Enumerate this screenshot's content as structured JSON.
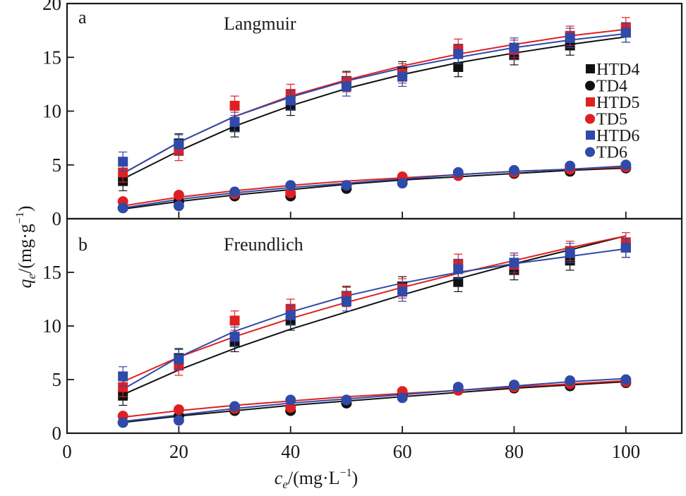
{
  "chart_data": [
    {
      "type": "scatter",
      "panel": "a",
      "panel_label": "a",
      "title": "Langmuir",
      "xlabel": "c_e/(mg·L⁻¹)",
      "ylabel": "q_e/(mg·g⁻¹)",
      "xlim": [
        0,
        110
      ],
      "ylim": [
        0,
        20
      ],
      "yticks": [
        "0",
        "5",
        "10",
        "15",
        "20"
      ],
      "ytick_values": [
        0,
        5,
        10,
        15,
        20
      ],
      "grid": false,
      "legend_position": "right",
      "x": [
        10,
        20,
        30,
        40,
        50,
        60,
        70,
        80,
        90,
        100
      ],
      "series": [
        {
          "name": "HTD4",
          "marker": "square",
          "color": "#111111",
          "values": [
            3.5,
            7.0,
            8.5,
            10.5,
            12.8,
            13.7,
            14.1,
            15.2,
            16.1,
            17.3
          ],
          "fit": [
            3.7,
            6.3,
            8.6,
            10.5,
            12.1,
            13.4,
            14.5,
            15.4,
            16.2,
            16.9
          ]
        },
        {
          "name": "TD4",
          "marker": "circle",
          "color": "#111111",
          "values": [
            1.0,
            1.6,
            2.1,
            2.1,
            2.8,
            3.6,
            4.0,
            4.2,
            4.4,
            4.7
          ],
          "fit": [
            0.9,
            1.6,
            2.2,
            2.7,
            3.2,
            3.6,
            3.9,
            4.2,
            4.5,
            4.7
          ]
        },
        {
          "name": "HTD5",
          "marker": "square",
          "color": "#e02020",
          "values": [
            4.3,
            6.3,
            10.5,
            11.6,
            12.7,
            13.5,
            15.8,
            15.7,
            17.0,
            17.8
          ],
          "fit": [
            4.2,
            7.1,
            9.5,
            11.4,
            12.9,
            14.2,
            15.3,
            16.2,
            17.0,
            17.6
          ]
        },
        {
          "name": "TD5",
          "marker": "circle",
          "color": "#e02020",
          "values": [
            1.6,
            2.2,
            2.3,
            2.4,
            3.1,
            3.9,
            4.0,
            4.3,
            4.6,
            4.8
          ],
          "fit": [
            1.2,
            2.0,
            2.6,
            3.1,
            3.5,
            3.8,
            4.1,
            4.4,
            4.6,
            4.8
          ]
        },
        {
          "name": "HTD6",
          "marker": "square",
          "color": "#2f4aa8",
          "values": [
            5.3,
            6.9,
            9.0,
            11.0,
            12.3,
            13.2,
            15.3,
            15.9,
            16.8,
            17.3
          ],
          "fit": [
            4.2,
            7.1,
            9.5,
            11.3,
            12.8,
            14.0,
            15.0,
            15.9,
            16.6,
            17.2
          ]
        },
        {
          "name": "TD6",
          "marker": "circle",
          "color": "#2f4aa8",
          "values": [
            1.0,
            1.2,
            2.5,
            3.1,
            3.1,
            3.3,
            4.3,
            4.5,
            4.9,
            5.0
          ],
          "fit": [
            1.0,
            1.8,
            2.4,
            2.9,
            3.3,
            3.7,
            4.1,
            4.4,
            4.6,
            4.9
          ]
        }
      ]
    },
    {
      "type": "scatter",
      "panel": "b",
      "panel_label": "b",
      "title": "Freundlich",
      "xlabel": "c_e/(mg·L⁻¹)",
      "ylabel": "q_e/(mg·g⁻¹)",
      "xlim": [
        0,
        110
      ],
      "ylim": [
        0,
        20
      ],
      "xticks": [
        "0",
        "20",
        "40",
        "60",
        "80",
        "100"
      ],
      "xtick_values": [
        0,
        20,
        40,
        60,
        80,
        100
      ],
      "yticks": [
        "0",
        "5",
        "10",
        "15"
      ],
      "ytick_values": [
        0,
        5,
        10,
        15
      ],
      "grid": false,
      "x": [
        10,
        20,
        30,
        40,
        50,
        60,
        70,
        80,
        90,
        100
      ],
      "series": [
        {
          "name": "HTD4",
          "marker": "square",
          "color": "#111111",
          "values": [
            3.5,
            7.0,
            8.5,
            10.5,
            12.8,
            13.7,
            14.1,
            15.2,
            16.1,
            17.3
          ],
          "fit": [
            3.6,
            5.9,
            7.9,
            9.7,
            11.3,
            12.9,
            14.4,
            15.8,
            17.1,
            18.4
          ]
        },
        {
          "name": "TD4",
          "marker": "circle",
          "color": "#111111",
          "values": [
            1.0,
            1.6,
            2.1,
            2.1,
            2.8,
            3.6,
            4.0,
            4.2,
            4.4,
            4.7
          ],
          "fit": [
            1.0,
            1.6,
            2.1,
            2.6,
            3.0,
            3.4,
            3.8,
            4.2,
            4.5,
            4.8
          ]
        },
        {
          "name": "HTD5",
          "marker": "square",
          "color": "#e02020",
          "values": [
            4.3,
            6.3,
            10.5,
            11.6,
            12.7,
            13.5,
            15.8,
            15.7,
            17.0,
            17.8
          ],
          "fit": [
            4.8,
            7.1,
            9.0,
            10.7,
            12.2,
            13.6,
            14.9,
            16.1,
            17.3,
            18.4
          ]
        },
        {
          "name": "TD5",
          "marker": "circle",
          "color": "#e02020",
          "values": [
            1.6,
            2.2,
            2.3,
            2.4,
            3.1,
            3.9,
            4.0,
            4.3,
            4.6,
            4.8
          ],
          "fit": [
            1.5,
            2.1,
            2.6,
            3.0,
            3.4,
            3.7,
            4.0,
            4.3,
            4.6,
            4.9
          ]
        },
        {
          "name": "HTD6",
          "marker": "square",
          "color": "#2f4aa8",
          "values": [
            5.3,
            6.9,
            9.0,
            11.0,
            12.3,
            13.2,
            15.3,
            15.9,
            16.8,
            17.3
          ],
          "fit": [
            4.1,
            7.1,
            9.5,
            11.3,
            12.8,
            14.0,
            15.0,
            15.8,
            16.5,
            17.2
          ]
        },
        {
          "name": "TD6",
          "marker": "circle",
          "color": "#2f4aa8",
          "values": [
            1.0,
            1.2,
            2.5,
            3.1,
            3.1,
            3.3,
            4.3,
            4.5,
            4.9,
            5.0
          ],
          "fit": [
            1.1,
            1.7,
            2.3,
            2.8,
            3.2,
            3.6,
            4.0,
            4.4,
            4.8,
            5.1
          ]
        }
      ]
    }
  ],
  "axis_titles": {
    "y_var": "q",
    "y_sub": "e",
    "y_unit": "/(mg·g",
    "y_sup": "−1",
    "y_close": ")",
    "x_var": "c",
    "x_sub": "e",
    "x_unit": "/(mg·L",
    "x_sup": "−1",
    "x_close": ")"
  }
}
